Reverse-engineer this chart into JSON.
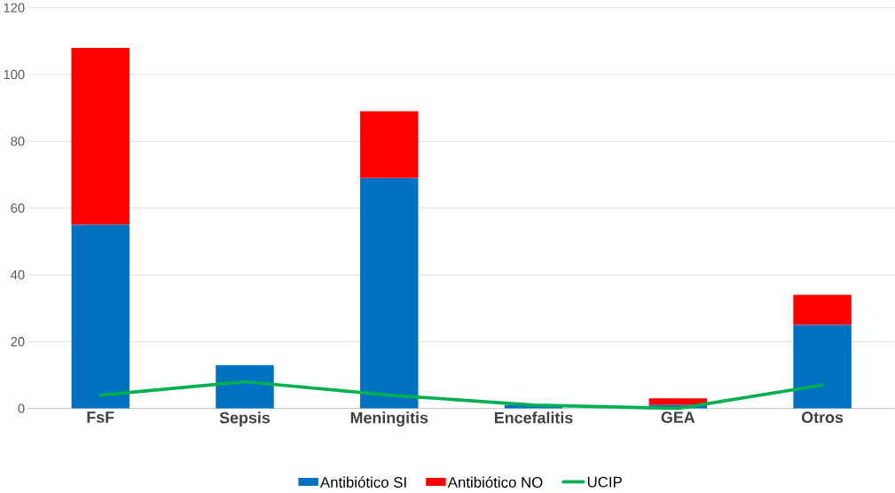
{
  "chart_data": {
    "type": "bar",
    "stacked": true,
    "categories": [
      "FsF",
      "Sepsis",
      "Meningitis",
      "Encefalitis",
      "GEA",
      "Otros"
    ],
    "series": [
      {
        "name": "Antibiótico SI",
        "color": "#0070c0",
        "values": [
          55,
          13,
          69,
          1,
          1,
          25
        ]
      },
      {
        "name": "Antibiótico NO",
        "color": "#ff0000",
        "values": [
          53,
          0,
          20,
          0,
          2,
          9
        ]
      },
      {
        "name": "UCIP",
        "type": "line",
        "color": "#00b050",
        "values": [
          4,
          8,
          4,
          1,
          0,
          7
        ]
      }
    ],
    "ylim": [
      0,
      120
    ],
    "yticks": [
      0,
      20,
      40,
      60,
      80,
      100,
      120
    ],
    "grid": "y",
    "legend": "bottom",
    "marker": "none",
    "line_style": "solid"
  }
}
